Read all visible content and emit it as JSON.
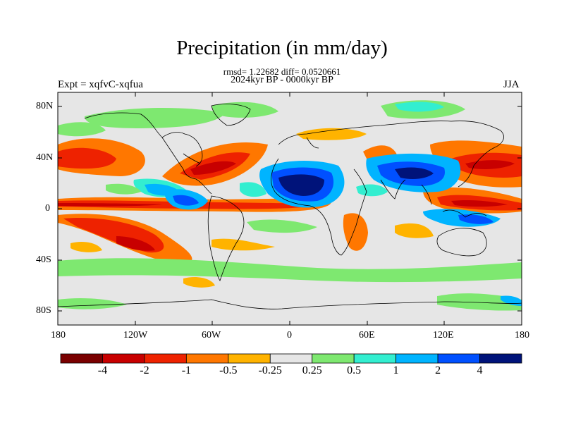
{
  "header": {
    "title": "Precipitation (in mm/day)",
    "stats": "rmsd= 1.22682 diff= 0.0520661",
    "period": "2024kyr BP - 0000kyr BP",
    "experiment": "Expt = xqfvC-xqfua",
    "season": "JJA"
  },
  "axes": {
    "lat_ticks": [
      "80N",
      "40N",
      "0",
      "40S",
      "80S"
    ],
    "lon_ticks": [
      "180",
      "120W",
      "60W",
      "0",
      "60E",
      "120E",
      "180"
    ]
  },
  "colorbar": {
    "labels": [
      "-4",
      "-2",
      "-1",
      "-0.5",
      "-0.25",
      "0.25",
      "0.5",
      "1",
      "2",
      "4"
    ],
    "colors": [
      "#7a0000",
      "#c80000",
      "#ee2200",
      "#ff7700",
      "#ffb300",
      "#e6e6e6",
      "#7ee870",
      "#33eed0",
      "#00b4ff",
      "#0050ff",
      "#00137a"
    ]
  },
  "map": {
    "background_color": "#e6e6e6",
    "coastline_color": "#000000"
  }
}
